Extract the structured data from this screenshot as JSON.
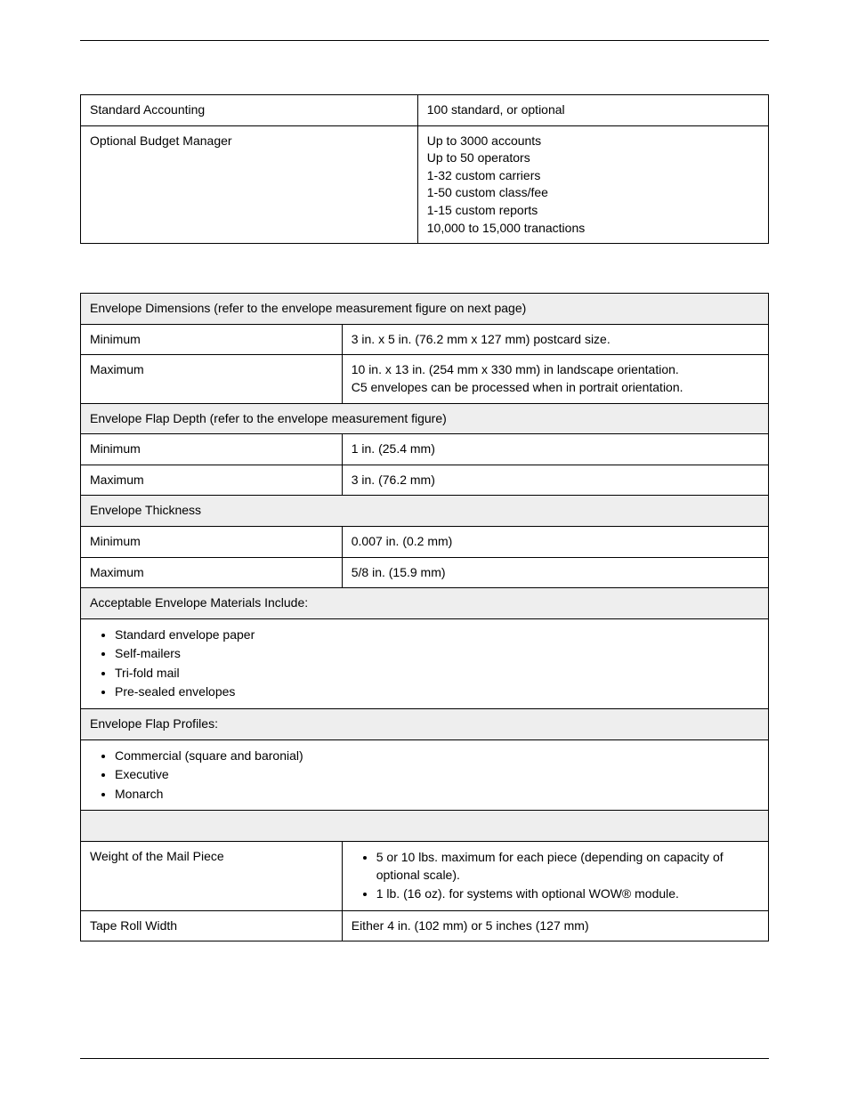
{
  "table1": {
    "rows": [
      {
        "label": "Standard Accounting",
        "value": "100 standard, or optional"
      },
      {
        "label": "Optional Budget Manager",
        "lines": [
          "Up to 3000 accounts",
          "Up to 50 operators",
          "1-32 custom carriers",
          "1-50 custom class/fee",
          "1-15 custom reports",
          "10,000 to 15,000 tranactions"
        ]
      }
    ]
  },
  "table2": {
    "sections": {
      "env_dims_header": "Envelope Dimensions (refer to the envelope measurement figure on next page)",
      "env_dims_min_label": "Minimum",
      "env_dims_min_value": "3 in. x 5 in. (76.2 mm x 127 mm) postcard size.",
      "env_dims_max_label": "Maximum",
      "env_dims_max_value_line1": "10 in. x 13 in. (254 mm x 330 mm) in landscape orientation.",
      "env_dims_max_value_line2": "C5 envelopes can be processed when in portrait orientation.",
      "flap_depth_header": "Envelope Flap Depth (refer to the envelope measurement figure)",
      "flap_depth_min_label": "Minimum",
      "flap_depth_min_value": "1 in. (25.4 mm)",
      "flap_depth_max_label": "Maximum",
      "flap_depth_max_value": "3 in. (76.2 mm)",
      "thickness_header": "Envelope Thickness",
      "thickness_min_label": "Minimum",
      "thickness_min_value": "0.007 in. (0.2 mm)",
      "thickness_max_label": "Maximum",
      "thickness_max_value": "5/8 in. (15.9 mm)",
      "materials_header": "Acceptable Envelope Materials Include:",
      "materials_items": [
        "Standard envelope paper",
        "Self-mailers",
        "Tri-fold mail",
        "Pre-sealed envelopes"
      ],
      "profiles_header": "Envelope Flap Profiles:",
      "profiles_items": [
        "Commercial (square and baronial)",
        "Executive",
        "Monarch"
      ],
      "weight_label": "Weight of the Mail Piece",
      "weight_items": [
        "5 or 10 lbs. maximum for each piece (depending on capacity of optional scale).",
        "1 lb. (16 oz). for systems with optional WOW® module."
      ],
      "tape_label": "Tape Roll Width",
      "tape_value": "Either 4 in. (102 mm) or 5 inches (127 mm)"
    }
  }
}
